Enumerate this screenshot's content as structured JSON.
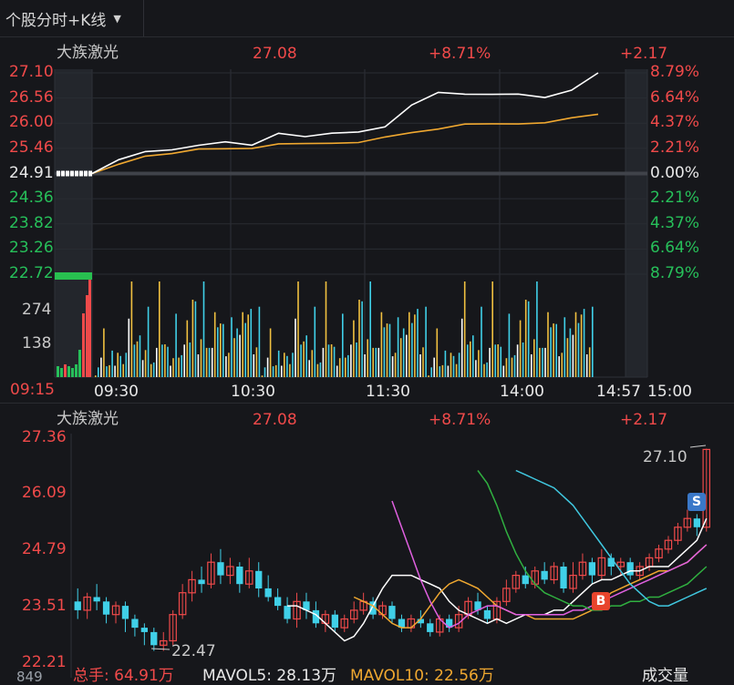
{
  "toolbar": {
    "view_label": "个股分时+K线"
  },
  "intraday_header": {
    "name": "大族激光",
    "price": "27.08",
    "pct": "+8.71%",
    "change": "+2.17"
  },
  "kline_header": {
    "name": "大族激光",
    "price": "27.08",
    "pct": "+8.71%",
    "change": "+2.17"
  },
  "intraday_axis": {
    "left_prices": [
      "27.10",
      "26.56",
      "26.00",
      "25.46",
      "24.91",
      "24.36",
      "23.82",
      "23.26",
      "22.72"
    ],
    "right_pcts": [
      "8.79%",
      "6.64%",
      "4.37%",
      "2.21%",
      "0.00%",
      "2.21%",
      "4.37%",
      "6.64%",
      "8.79%"
    ],
    "volume_ticks": [
      "274",
      "138"
    ],
    "time_labels": [
      "09:15",
      "09:30",
      "10:30",
      "11:30",
      "14:00",
      "14:57",
      "15:00"
    ]
  },
  "kline_axis": {
    "price_ticks": [
      "27.36",
      "26.09",
      "24.79",
      "23.51",
      "22.21"
    ],
    "high_label": "27.10",
    "low_label": "22.47",
    "badge_s": "S",
    "badge_b": "B"
  },
  "footer": {
    "vol_label": "总手: 64.91万",
    "mavol5": "MAVOL5: 28.13万",
    "mavol10": "MAVOL10: 22.56万",
    "tab": "成交量",
    "left_tick": "849"
  },
  "colors": {
    "up": "#f04a4a",
    "down": "#27c05a",
    "price_line": "#ffffff",
    "avg_line": "#f0a830",
    "ma5": "#ffffff",
    "ma10": "#f0a830",
    "ma20": "#e060e0",
    "ma30": "#30b040",
    "ma60": "#40c8e0",
    "candle_down": "#40d0e8"
  },
  "chart_data": [
    {
      "type": "line",
      "title": "大族激光 intraday",
      "y_range": [
        22.72,
        27.1
      ],
      "prev_close": 24.91,
      "series": [
        {
          "name": "price",
          "values": [
            24.91,
            25.2,
            25.4,
            25.46,
            25.5,
            25.6,
            25.55,
            25.75,
            25.7,
            25.8,
            25.85,
            25.9,
            26.4,
            26.7,
            26.6,
            26.62,
            26.65,
            26.6,
            26.7,
            27.1
          ]
        },
        {
          "name": "avg",
          "values": [
            24.91,
            25.1,
            25.3,
            25.38,
            25.42,
            25.45,
            25.48,
            25.52,
            25.55,
            25.58,
            25.62,
            25.68,
            25.8,
            25.9,
            25.95,
            25.98,
            26.0,
            26.05,
            26.1,
            26.2
          ]
        }
      ],
      "volume": [
        10,
        40,
        60,
        120,
        50,
        40,
        70,
        60,
        90,
        60,
        80,
        100,
        180,
        250,
        150,
        120,
        110,
        90,
        100,
        200,
        80,
        60,
        90,
        270,
        150,
        110,
        80,
        60,
        70,
        180,
        120,
        90,
        100,
        140,
        160,
        260,
        200,
        120,
        140,
        274,
        180,
        120,
        90,
        160,
        230,
        180,
        140,
        110,
        90,
        170,
        240,
        200,
        130,
        160,
        250,
        210,
        180,
        120,
        110,
        200
      ]
    },
    {
      "type": "candlestick",
      "title": "大族激光 daily K",
      "y_range": [
        22.21,
        27.36
      ],
      "candles": [
        [
          23.6,
          23.4,
          23.9,
          23.2
        ],
        [
          23.4,
          23.7,
          23.8,
          23.2
        ],
        [
          23.7,
          23.6,
          24.0,
          23.4
        ],
        [
          23.6,
          23.3,
          23.7,
          23.1
        ],
        [
          23.3,
          23.5,
          23.6,
          23.1
        ],
        [
          23.5,
          23.2,
          23.6,
          22.9
        ],
        [
          23.2,
          23.0,
          23.3,
          22.8
        ],
        [
          23.0,
          22.9,
          23.1,
          22.6
        ],
        [
          22.9,
          22.6,
          23.0,
          22.47
        ],
        [
          22.6,
          22.7,
          22.9,
          22.47
        ],
        [
          22.7,
          23.3,
          23.4,
          22.6
        ],
        [
          23.3,
          23.8,
          24.0,
          23.2
        ],
        [
          23.8,
          24.1,
          24.3,
          23.6
        ],
        [
          24.1,
          24.0,
          24.4,
          23.8
        ],
        [
          24.0,
          24.5,
          24.7,
          23.9
        ],
        [
          24.5,
          24.2,
          24.8,
          24.0
        ],
        [
          24.2,
          24.4,
          24.6,
          24.0
        ],
        [
          24.4,
          24.0,
          24.5,
          23.8
        ],
        [
          24.0,
          24.3,
          24.6,
          23.9
        ],
        [
          24.3,
          23.9,
          24.5,
          23.7
        ],
        [
          23.9,
          23.7,
          24.2,
          23.6
        ],
        [
          23.7,
          23.5,
          23.9,
          23.4
        ],
        [
          23.5,
          23.2,
          23.7,
          23.1
        ],
        [
          23.2,
          23.6,
          23.8,
          23.0
        ],
        [
          23.6,
          23.4,
          23.8,
          23.2
        ],
        [
          23.4,
          23.1,
          23.6,
          23.0
        ],
        [
          23.1,
          23.3,
          23.4,
          22.9
        ],
        [
          23.3,
          23.0,
          23.4,
          22.9
        ],
        [
          23.0,
          23.2,
          23.3,
          22.9
        ],
        [
          23.2,
          23.4,
          23.6,
          23.1
        ],
        [
          23.4,
          23.6,
          23.8,
          23.3
        ],
        [
          23.6,
          23.3,
          23.7,
          23.2
        ],
        [
          23.3,
          23.5,
          23.6,
          23.2
        ],
        [
          23.5,
          23.2,
          23.6,
          23.1
        ],
        [
          23.2,
          23.0,
          23.3,
          22.9
        ],
        [
          23.0,
          23.2,
          23.3,
          22.9
        ],
        [
          23.2,
          23.1,
          23.4,
          23.0
        ],
        [
          23.1,
          22.9,
          23.2,
          22.8
        ],
        [
          22.9,
          23.2,
          23.3,
          22.8
        ],
        [
          23.2,
          23.0,
          23.3,
          22.9
        ],
        [
          23.0,
          23.3,
          23.5,
          22.9
        ],
        [
          23.3,
          23.6,
          23.7,
          23.2
        ],
        [
          23.6,
          23.4,
          23.8,
          23.3
        ],
        [
          23.4,
          23.2,
          23.5,
          23.1
        ],
        [
          23.2,
          23.6,
          23.7,
          23.1
        ],
        [
          23.6,
          23.9,
          24.1,
          23.5
        ],
        [
          23.9,
          24.2,
          24.3,
          23.8
        ],
        [
          24.2,
          24.0,
          24.4,
          23.9
        ],
        [
          24.0,
          24.3,
          24.4,
          23.9
        ],
        [
          24.3,
          24.1,
          24.5,
          24.0
        ],
        [
          24.1,
          24.4,
          24.5,
          24.0
        ],
        [
          24.4,
          23.9,
          24.5,
          23.8
        ],
        [
          23.9,
          24.2,
          24.5,
          23.8
        ],
        [
          24.2,
          24.5,
          24.7,
          24.1
        ],
        [
          24.5,
          24.2,
          24.6,
          24.0
        ],
        [
          24.2,
          24.6,
          24.8,
          24.1
        ],
        [
          24.6,
          24.4,
          24.7,
          24.2
        ],
        [
          24.4,
          24.5,
          24.6,
          24.2
        ],
        [
          24.5,
          24.2,
          24.6,
          24.1
        ],
        [
          24.2,
          24.4,
          24.5,
          24.1
        ],
        [
          24.4,
          24.6,
          24.7,
          24.3
        ],
        [
          24.6,
          24.8,
          24.9,
          24.5
        ],
        [
          24.8,
          25.0,
          25.1,
          24.7
        ],
        [
          25.0,
          25.3,
          25.4,
          24.9
        ],
        [
          25.3,
          25.5,
          25.7,
          25.2
        ],
        [
          25.5,
          25.3,
          25.6,
          25.1
        ],
        [
          25.3,
          27.08,
          27.1,
          25.2
        ]
      ],
      "series": [
        {
          "name": "MA5",
          "values": [
            23.5,
            23.5,
            23.4,
            23.3,
            23.1,
            22.9,
            22.7,
            22.8,
            23.1,
            23.5,
            23.9,
            24.2,
            24.2,
            24.2,
            24.1,
            24.0,
            23.9,
            23.6,
            23.4,
            23.3,
            23.2,
            23.1,
            23.2,
            23.1,
            23.2,
            23.3,
            23.3,
            23.3,
            23.4,
            23.4,
            23.6,
            23.8,
            24.0,
            24.1,
            24.1,
            24.2,
            24.3,
            24.3,
            24.4,
            24.4,
            24.4,
            24.6,
            24.8,
            25.0,
            25.5
          ]
        },
        {
          "name": "MA10",
          "values": [
            23.7,
            23.6,
            23.5,
            23.3,
            23.1,
            23.0,
            23.0,
            23.2,
            23.5,
            23.8,
            24.0,
            24.1,
            24.0,
            23.9,
            23.7,
            23.5,
            23.4,
            23.3,
            23.3,
            23.2,
            23.2,
            23.2,
            23.2,
            23.2,
            23.3,
            23.4,
            23.6,
            23.8,
            23.9,
            24.0,
            24.1,
            24.2,
            24.3,
            24.3,
            24.4,
            24.5,
            24.7,
            24.9
          ]
        },
        {
          "name": "MA20",
          "values": [
            25.9,
            25.3,
            24.7,
            24.1,
            23.6,
            23.2,
            23.0,
            23.1,
            23.3,
            23.4,
            23.5,
            23.5,
            23.4,
            23.3,
            23.3,
            23.3,
            23.3,
            23.3,
            23.3,
            23.4,
            23.4,
            23.5,
            23.6,
            23.7,
            23.8,
            23.9,
            24.0,
            24.1,
            24.2,
            24.3,
            24.4,
            24.5,
            24.7,
            24.9
          ]
        },
        {
          "name": "MA30",
          "values": [
            26.6,
            26.3,
            25.8,
            25.2,
            24.7,
            24.3,
            24.0,
            23.8,
            23.7,
            23.6,
            23.5,
            23.5,
            23.4,
            23.4,
            23.5,
            23.5,
            23.6,
            23.6,
            23.7,
            23.7,
            23.8,
            23.9,
            24.0,
            24.2,
            24.4
          ]
        },
        {
          "name": "MA60",
          "values": [
            26.6,
            26.5,
            26.4,
            26.3,
            26.2,
            26.0,
            25.8,
            25.5,
            25.2,
            24.9,
            24.6,
            24.3,
            24.0,
            23.8,
            23.6,
            23.5,
            23.5,
            23.6,
            23.7,
            23.8,
            23.9
          ]
        }
      ]
    }
  ]
}
